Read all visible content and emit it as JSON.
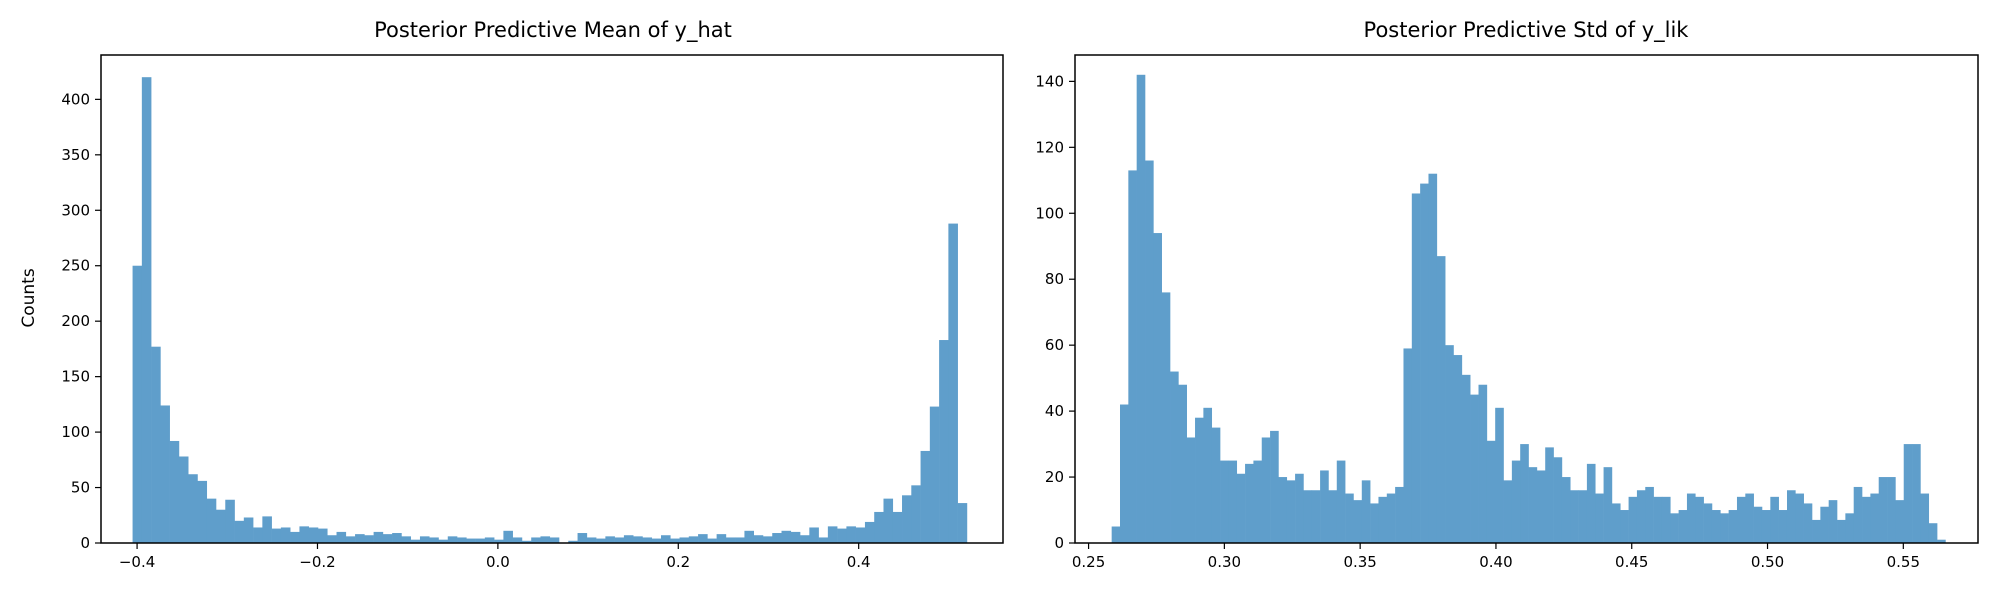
{
  "chart_data": [
    {
      "type": "bar",
      "title": "Posterior Predictive Mean of y_hat",
      "xlabel": "",
      "ylabel": "Counts",
      "xlim": [
        -0.44,
        0.56
      ],
      "ylim": [
        0,
        440
      ],
      "xticks": [
        -0.4,
        -0.2,
        0.0,
        0.2,
        0.4
      ],
      "xtick_labels": [
        "−0.4",
        "−0.2",
        "0.0",
        "0.2",
        "0.4"
      ],
      "yticks": [
        0,
        50,
        100,
        150,
        200,
        250,
        300,
        350,
        400
      ],
      "ytick_labels": [
        "0",
        "50",
        "100",
        "150",
        "200",
        "250",
        "300",
        "350",
        "400"
      ],
      "bin_start": -0.405,
      "bin_end": 0.52,
      "color": "#5f9ecb",
      "values": [
        250,
        420,
        177,
        124,
        92,
        78,
        62,
        56,
        40,
        30,
        39,
        20,
        23,
        14,
        24,
        13,
        14,
        10,
        15,
        14,
        13,
        7,
        10,
        6,
        8,
        7,
        10,
        8,
        9,
        6,
        3,
        6,
        5,
        3,
        6,
        5,
        4,
        4,
        5,
        3,
        11,
        5,
        2,
        5,
        6,
        5,
        0,
        2,
        9,
        5,
        4,
        6,
        5,
        7,
        6,
        5,
        4,
        7,
        4,
        5,
        6,
        8,
        4,
        8,
        5,
        5,
        11,
        7,
        6,
        9,
        11,
        10,
        7,
        14,
        5,
        15,
        13,
        15,
        14,
        19,
        28,
        40,
        28,
        43,
        52,
        83,
        123,
        183,
        288,
        36
      ]
    },
    {
      "type": "bar",
      "title": "Posterior Predictive Std of y_lik",
      "xlabel": "",
      "ylabel": "",
      "xlim": [
        0.245,
        0.5775
      ],
      "ylim": [
        0,
        148
      ],
      "xticks": [
        0.25,
        0.3,
        0.35,
        0.4,
        0.45,
        0.5,
        0.55
      ],
      "xtick_labels": [
        "0.25",
        "0.30",
        "0.35",
        "0.40",
        "0.45",
        "0.50",
        "0.55"
      ],
      "yticks": [
        0,
        20,
        40,
        60,
        80,
        100,
        120,
        140
      ],
      "ytick_labels": [
        "0",
        "20",
        "40",
        "60",
        "80",
        "100",
        "120",
        "140"
      ],
      "bin_start": 0.2585,
      "bin_end": 0.5655,
      "color": "#5f9ecb",
      "values": [
        5,
        42,
        113,
        142,
        116,
        94,
        76,
        52,
        48,
        32,
        38,
        41,
        35,
        25,
        25,
        21,
        24,
        25,
        32,
        34,
        20,
        19,
        21,
        16,
        16,
        22,
        16,
        25,
        15,
        13,
        19,
        12,
        14,
        15,
        17,
        59,
        106,
        109,
        112,
        87,
        60,
        57,
        51,
        45,
        48,
        31,
        41,
        19,
        25,
        30,
        23,
        22,
        29,
        26,
        20,
        16,
        16,
        24,
        15,
        23,
        12,
        10,
        14,
        16,
        17,
        14,
        14,
        9,
        10,
        15,
        14,
        12,
        10,
        9,
        10,
        14,
        15,
        11,
        10,
        14,
        10,
        16,
        15,
        12,
        7,
        11,
        13,
        7,
        9,
        17,
        14,
        15,
        20,
        20,
        13,
        30,
        30,
        15,
        6,
        1
      ]
    }
  ]
}
